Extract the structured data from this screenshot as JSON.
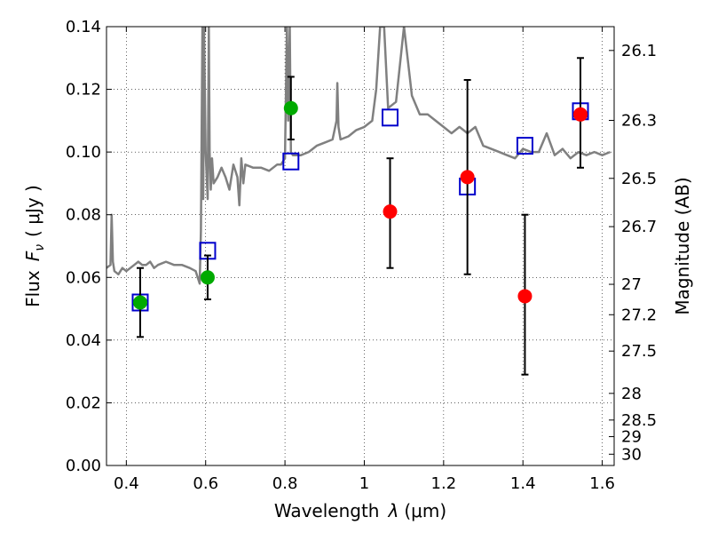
{
  "chart_data": {
    "type": "scatter",
    "xlabel_text": "Wavelength",
    "xlabel_symbol": "λ",
    "xlabel_unit": "(μm)",
    "ylabel_text": "Flux",
    "ylabel_symbol_main": "F",
    "ylabel_symbol_sub": "ν",
    "ylabel_unit": "( μJy )",
    "ylabel_right": "Magnitude (AB)",
    "xlim": [
      0.35,
      1.63
    ],
    "ylim": [
      0.0,
      0.14
    ],
    "grid": true,
    "grid_style": "dotted",
    "x_ticks": [
      0.4,
      0.6,
      0.8,
      1.0,
      1.2,
      1.4,
      1.6
    ],
    "x_tick_labels": [
      "0.4",
      "0.6",
      "0.8",
      "1",
      "1.2",
      "1.4",
      "1.6"
    ],
    "y_ticks": [
      0.0,
      0.02,
      0.04,
      0.06,
      0.08,
      0.1,
      0.12,
      0.14
    ],
    "y_tick_labels": [
      "0.00",
      "0.02",
      "0.04",
      "0.06",
      "0.08",
      "0.10",
      "0.12",
      "0.14"
    ],
    "mag_ticks": [
      {
        "label": "26.1",
        "flux": 0.1324
      },
      {
        "label": "26.3",
        "flux": 0.1101
      },
      {
        "label": "26.5",
        "flux": 0.0916
      },
      {
        "label": "26.7",
        "flux": 0.0762
      },
      {
        "label": "27",
        "flux": 0.0578
      },
      {
        "label": "27.2",
        "flux": 0.0481
      },
      {
        "label": "27.5",
        "flux": 0.0365
      },
      {
        "label": "28",
        "flux": 0.023
      },
      {
        "label": "28.5",
        "flux": 0.0145
      },
      {
        "label": "29",
        "flux": 0.0092
      },
      {
        "label": "30",
        "flux": 0.0036
      }
    ],
    "colors": {
      "spectrum": "#808080",
      "model": "#0000cc",
      "green": "#00aa00",
      "red": "#ff0000",
      "errorbar": "#000000"
    },
    "spectrum": {
      "x": [
        0.35,
        0.36,
        0.363,
        0.366,
        0.37,
        0.38,
        0.39,
        0.4,
        0.41,
        0.42,
        0.43,
        0.44,
        0.45,
        0.46,
        0.47,
        0.48,
        0.5,
        0.52,
        0.54,
        0.56,
        0.575,
        0.585,
        0.588,
        0.59,
        0.592,
        0.594,
        0.596,
        0.6,
        0.605,
        0.608,
        0.61,
        0.613,
        0.616,
        0.62,
        0.63,
        0.64,
        0.65,
        0.66,
        0.67,
        0.68,
        0.685,
        0.69,
        0.695,
        0.7,
        0.72,
        0.74,
        0.76,
        0.78,
        0.79,
        0.8,
        0.805,
        0.808,
        0.812,
        0.815,
        0.82,
        0.84,
        0.86,
        0.88,
        0.9,
        0.92,
        0.93,
        0.932,
        0.935,
        0.94,
        0.96,
        0.98,
        1.0,
        1.02,
        1.03,
        1.04,
        1.05,
        1.06,
        1.08,
        1.1,
        1.12,
        1.14,
        1.16,
        1.18,
        1.2,
        1.22,
        1.24,
        1.26,
        1.28,
        1.3,
        1.32,
        1.34,
        1.36,
        1.38,
        1.4,
        1.42,
        1.44,
        1.46,
        1.48,
        1.5,
        1.52,
        1.54,
        1.56,
        1.58,
        1.6,
        1.62
      ],
      "y": [
        0.063,
        0.064,
        0.08,
        0.065,
        0.062,
        0.061,
        0.063,
        0.062,
        0.063,
        0.064,
        0.065,
        0.064,
        0.064,
        0.065,
        0.063,
        0.064,
        0.065,
        0.064,
        0.064,
        0.063,
        0.062,
        0.058,
        0.075,
        0.11,
        0.14,
        0.085,
        0.14,
        0.1,
        0.085,
        0.14,
        0.1,
        0.088,
        0.098,
        0.09,
        0.092,
        0.095,
        0.092,
        0.088,
        0.096,
        0.092,
        0.083,
        0.098,
        0.09,
        0.096,
        0.095,
        0.095,
        0.094,
        0.096,
        0.096,
        0.098,
        0.14,
        0.11,
        0.14,
        0.1,
        0.099,
        0.099,
        0.1,
        0.102,
        0.103,
        0.104,
        0.11,
        0.122,
        0.108,
        0.104,
        0.105,
        0.107,
        0.108,
        0.11,
        0.12,
        0.14,
        0.14,
        0.114,
        0.116,
        0.14,
        0.118,
        0.112,
        0.112,
        0.11,
        0.108,
        0.106,
        0.108,
        0.106,
        0.108,
        0.102,
        0.101,
        0.1,
        0.099,
        0.098,
        0.101,
        0.1,
        0.1,
        0.106,
        0.099,
        0.101,
        0.098,
        0.1,
        0.099,
        0.1,
        0.099,
        0.1
      ]
    },
    "model": [
      {
        "x": 0.435,
        "y": 0.052
      },
      {
        "x": 0.605,
        "y": 0.0685
      },
      {
        "x": 0.815,
        "y": 0.097
      },
      {
        "x": 1.065,
        "y": 0.111
      },
      {
        "x": 1.26,
        "y": 0.089
      },
      {
        "x": 1.405,
        "y": 0.102
      },
      {
        "x": 1.545,
        "y": 0.113
      }
    ],
    "green_points": [
      {
        "x": 0.435,
        "y": 0.052,
        "yerr_low": 0.041,
        "yerr_high": 0.063
      },
      {
        "x": 0.605,
        "y": 0.06,
        "yerr_low": 0.053,
        "yerr_high": 0.067
      },
      {
        "x": 0.815,
        "y": 0.114,
        "yerr_low": 0.104,
        "yerr_high": 0.124
      }
    ],
    "red_points": [
      {
        "x": 1.065,
        "y": 0.081,
        "yerr_low": 0.063,
        "yerr_high": 0.098
      },
      {
        "x": 1.26,
        "y": 0.092,
        "yerr_low": 0.061,
        "yerr_high": 0.123
      },
      {
        "x": 1.405,
        "y": 0.054,
        "yerr_low": 0.029,
        "yerr_high": 0.08
      },
      {
        "x": 1.545,
        "y": 0.112,
        "yerr_low": 0.095,
        "yerr_high": 0.13
      }
    ]
  }
}
